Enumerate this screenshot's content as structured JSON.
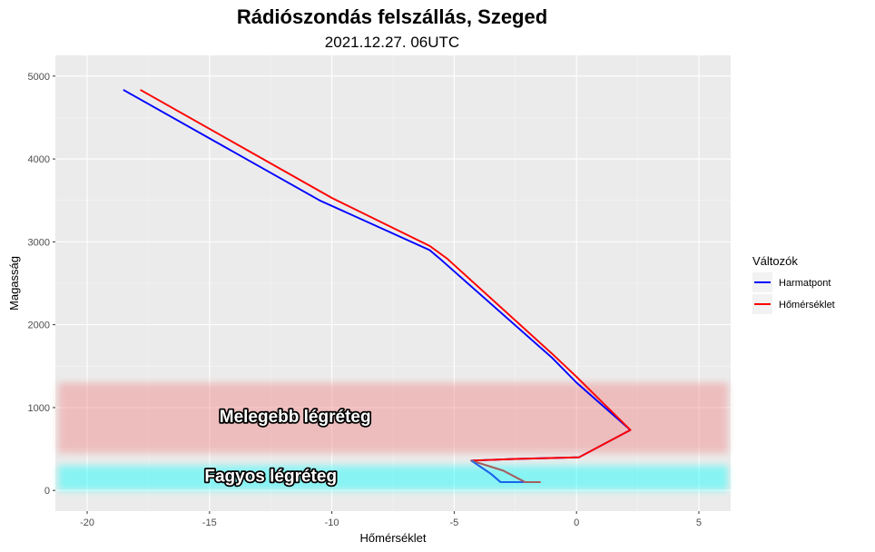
{
  "chart_data": {
    "type": "line",
    "title": "Rádiószondás felszállás, Szeged",
    "subtitle": "2021.12.27. 06UTC",
    "xlabel": "Hőmérséklet",
    "ylabel": "Magasság",
    "xlim": [
      -21.3,
      6.3
    ],
    "ylim": [
      -250,
      5250
    ],
    "x_ticks": [
      -20,
      -15,
      -10,
      -5,
      0,
      5
    ],
    "y_ticks": [
      0,
      1000,
      2000,
      3000,
      4000,
      5000
    ],
    "grid": true,
    "legend": {
      "title": "Változók",
      "position": "right"
    },
    "series": [
      {
        "name": "Harmatpont",
        "color": "#0000ff",
        "points": [
          [
            -18.5,
            4830
          ],
          [
            -10.5,
            3500
          ],
          [
            -6.0,
            2900
          ],
          [
            -5.6,
            2800
          ],
          [
            -1.0,
            1600
          ],
          [
            0.0,
            1300
          ],
          [
            2.2,
            730
          ],
          [
            0.1,
            400
          ],
          [
            -2.5,
            380
          ],
          [
            -4.3,
            360
          ],
          [
            -3.5,
            200
          ],
          [
            -3.1,
            100
          ],
          [
            -2.2,
            100
          ]
        ]
      },
      {
        "name": "Hőmérséklet",
        "color": "#ff0000",
        "points": [
          [
            -17.8,
            4830
          ],
          [
            -10.0,
            3530
          ],
          [
            -6.0,
            2950
          ],
          [
            -5.3,
            2800
          ],
          [
            -1.0,
            1650
          ],
          [
            0.0,
            1370
          ],
          [
            2.2,
            730
          ],
          [
            0.1,
            400
          ],
          [
            -2.5,
            380
          ],
          [
            -4.3,
            360
          ],
          [
            -3.0,
            240
          ],
          [
            -2.1,
            100
          ],
          [
            -1.5,
            100
          ]
        ]
      }
    ],
    "bands": [
      {
        "label": "Melegebb légréteg",
        "y0": 450,
        "y1": 1300,
        "color": "#f08080",
        "label_x": -11.5,
        "label_y": 880
      },
      {
        "label": "Fagyos légréteg",
        "y0": 0,
        "y1": 300,
        "color": "#00ffff",
        "label_x": -12.5,
        "label_y": 160
      }
    ],
    "overlap_color": "#808080"
  }
}
